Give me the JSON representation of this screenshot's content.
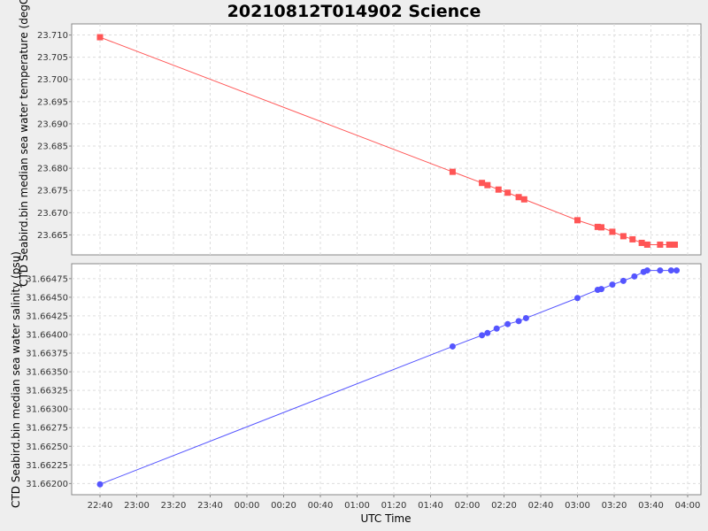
{
  "title": "20210812T014902 Science",
  "chart_data": [
    {
      "type": "line",
      "ylabel": "CTD Seabird.bin median sea water temperature (degC)",
      "ylim": [
        23.6605,
        23.7125
      ],
      "yticks": [
        "23.665",
        "23.670",
        "23.675",
        "23.680",
        "23.685",
        "23.690",
        "23.695",
        "23.700",
        "23.705",
        "23.710"
      ],
      "color": "#ff5555",
      "marker": "square",
      "grid": true,
      "series": [
        {
          "x": [
            "22:40",
            "01:52",
            "02:08",
            "02:11",
            "02:17",
            "02:22",
            "02:28",
            "02:31",
            "03:00",
            "03:11",
            "03:13",
            "03:19",
            "03:25",
            "03:30",
            "03:35",
            "03:38",
            "03:45",
            "03:50",
            "03:53"
          ],
          "values": [
            23.7095,
            23.6792,
            23.6767,
            23.6762,
            23.6752,
            23.6745,
            23.6735,
            23.673,
            23.6683,
            23.6668,
            23.6667,
            23.6657,
            23.6647,
            23.664,
            23.6632,
            23.6628,
            23.6628,
            23.6628,
            23.6628
          ]
        }
      ]
    },
    {
      "type": "line",
      "ylabel": "CTD Seabird.bin median sea water salinity (psu)",
      "ylim": [
        31.66185,
        31.66495
      ],
      "yticks": [
        "31.66200",
        "31.66225",
        "31.66250",
        "31.66275",
        "31.66300",
        "31.66325",
        "31.66350",
        "31.66375",
        "31.66400",
        "31.66425",
        "31.66450",
        "31.66475"
      ],
      "color": "#5555ff",
      "marker": "circle",
      "grid": true,
      "series": [
        {
          "x": [
            "22:40",
            "01:52",
            "02:08",
            "02:11",
            "02:16",
            "02:22",
            "02:28",
            "02:32",
            "03:00",
            "03:11",
            "03:13",
            "03:19",
            "03:25",
            "03:31",
            "03:36",
            "03:38",
            "03:45",
            "03:51",
            "03:54"
          ],
          "values": [
            31.66199,
            31.66384,
            31.66399,
            31.66402,
            31.66408,
            31.66414,
            31.66418,
            31.66422,
            31.66449,
            31.6646,
            31.66461,
            31.66467,
            31.66472,
            31.66478,
            31.66484,
            31.66486,
            31.66486,
            31.66486,
            31.66486
          ]
        }
      ]
    }
  ],
  "xaxis": {
    "label": "UTC Time",
    "ticks": [
      "22:40",
      "23:00",
      "23:20",
      "23:40",
      "00:00",
      "00:20",
      "00:40",
      "01:00",
      "01:20",
      "01:40",
      "02:00",
      "02:20",
      "02:40",
      "03:00",
      "03:20",
      "03:40",
      "04:00"
    ]
  }
}
